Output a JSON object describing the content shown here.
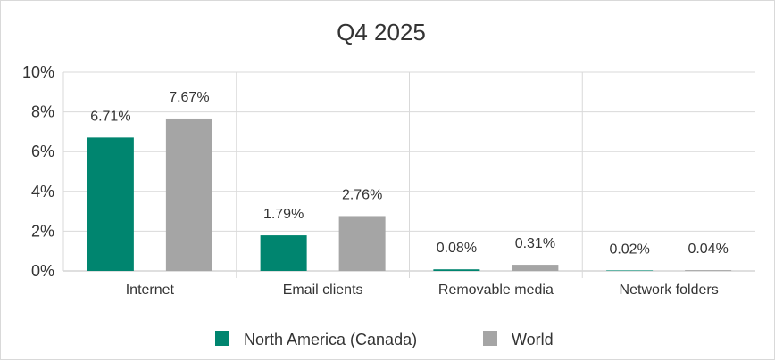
{
  "chart_data": {
    "type": "bar",
    "title": "Q4 2025",
    "categories": [
      "Internet",
      "Email clients",
      "Removable media",
      "Network folders"
    ],
    "series": [
      {
        "name": "North America (Canada)",
        "color": "#00856f",
        "values": [
          6.71,
          1.79,
          0.08,
          0.02
        ],
        "labels": [
          "6.71%",
          "1.79%",
          "0.08%",
          "0.02%"
        ]
      },
      {
        "name": "World",
        "color": "#a5a5a5",
        "values": [
          7.67,
          2.76,
          0.31,
          0.04
        ],
        "labels": [
          "7.67%",
          "2.76%",
          "0.31%",
          "0.04%"
        ]
      }
    ],
    "ylim": [
      0,
      10
    ],
    "yticks": [
      "0%",
      "2%",
      "4%",
      "6%",
      "8%",
      "10%"
    ],
    "xlabel": "",
    "ylabel": "",
    "grid": true,
    "legend_position": "bottom"
  }
}
